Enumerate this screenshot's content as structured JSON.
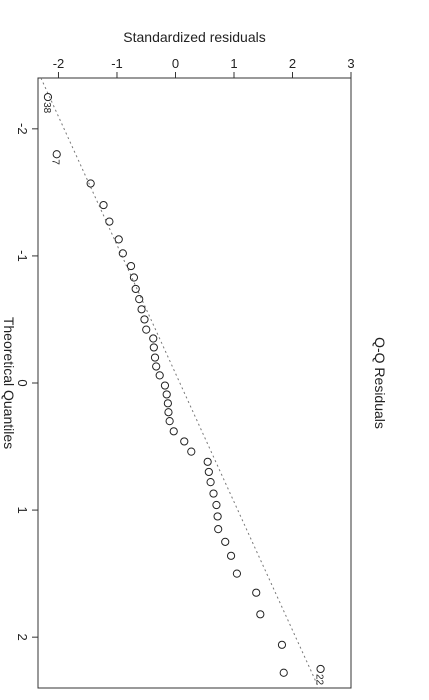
{
  "chart_data": {
    "type": "scatter",
    "title": "Q-Q Residuals",
    "xlabel": "Theoretical Quantiles",
    "ylabel": "Standardized residuals",
    "xlim": [
      -2.4,
      2.4
    ],
    "ylim": [
      -2.35,
      3.0
    ],
    "x_ticks": [
      -2,
      -1,
      0,
      1,
      2
    ],
    "x_tick_labels": [
      "-2",
      "-1",
      "0",
      "1",
      "2"
    ],
    "y_ticks": [
      -2,
      -1,
      0,
      1,
      2,
      3
    ],
    "y_tick_labels": [
      "-2",
      "-1",
      "0",
      "1",
      "2",
      "3"
    ],
    "grid": false,
    "reference_line": {
      "style": "dotted",
      "x": [
        -2.4,
        2.4
      ],
      "y": [
        -2.3,
        2.45
      ]
    },
    "points": [
      {
        "x": -2.25,
        "y": -2.18,
        "label": "38"
      },
      {
        "x": -1.8,
        "y": -2.03,
        "label": "7"
      },
      {
        "x": -1.57,
        "y": -1.45
      },
      {
        "x": -1.4,
        "y": -1.23
      },
      {
        "x": -1.27,
        "y": -1.13
      },
      {
        "x": -1.13,
        "y": -0.97
      },
      {
        "x": -1.02,
        "y": -0.9
      },
      {
        "x": -0.92,
        "y": -0.76
      },
      {
        "x": -0.83,
        "y": -0.71
      },
      {
        "x": -0.74,
        "y": -0.68
      },
      {
        "x": -0.66,
        "y": -0.62
      },
      {
        "x": -0.58,
        "y": -0.58
      },
      {
        "x": -0.5,
        "y": -0.53
      },
      {
        "x": -0.42,
        "y": -0.5
      },
      {
        "x": -0.35,
        "y": -0.38
      },
      {
        "x": -0.28,
        "y": -0.37
      },
      {
        "x": -0.2,
        "y": -0.35
      },
      {
        "x": -0.13,
        "y": -0.33
      },
      {
        "x": -0.06,
        "y": -0.27
      },
      {
        "x": 0.02,
        "y": -0.18
      },
      {
        "x": 0.09,
        "y": -0.15
      },
      {
        "x": 0.16,
        "y": -0.13
      },
      {
        "x": 0.23,
        "y": -0.12
      },
      {
        "x": 0.3,
        "y": -0.1
      },
      {
        "x": 0.38,
        "y": -0.03
      },
      {
        "x": 0.46,
        "y": 0.15
      },
      {
        "x": 0.54,
        "y": 0.27
      },
      {
        "x": 0.62,
        "y": 0.55
      },
      {
        "x": 0.7,
        "y": 0.57
      },
      {
        "x": 0.78,
        "y": 0.6
      },
      {
        "x": 0.87,
        "y": 0.65
      },
      {
        "x": 0.96,
        "y": 0.7
      },
      {
        "x": 1.05,
        "y": 0.72
      },
      {
        "x": 1.15,
        "y": 0.73
      },
      {
        "x": 1.25,
        "y": 0.85
      },
      {
        "x": 1.36,
        "y": 0.95
      },
      {
        "x": 1.5,
        "y": 1.05
      },
      {
        "x": 1.65,
        "y": 1.38
      },
      {
        "x": 1.82,
        "y": 1.45
      },
      {
        "x": 2.06,
        "y": 1.82
      },
      {
        "x": 2.28,
        "y": 1.85
      },
      {
        "x": 2.25,
        "y": 2.48,
        "label": "22"
      }
    ]
  }
}
